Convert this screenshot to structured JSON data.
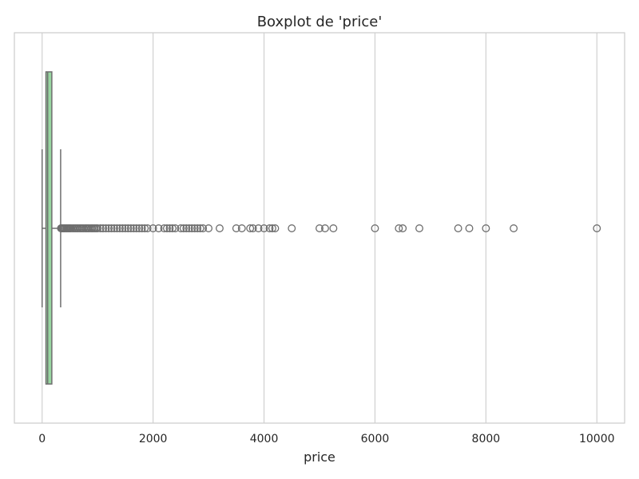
{
  "chart_data": {
    "type": "boxplot",
    "orientation": "horizontal",
    "title": "Boxplot de 'price'",
    "xlabel": "price",
    "ylabel": "",
    "xlim": [
      -500,
      10500
    ],
    "x_ticks": [
      0,
      2000,
      4000,
      6000,
      8000,
      10000
    ],
    "x_tick_labels": [
      "0",
      "2000",
      "4000",
      "6000",
      "8000",
      "10000"
    ],
    "grid": "vertical",
    "legend": "none",
    "box": {
      "whisker_low": 0,
      "q1": 69,
      "median": 100,
      "q3": 175,
      "whisker_high": 334
    },
    "outliers": [
      340,
      350,
      360,
      375,
      390,
      400,
      420,
      440,
      450,
      470,
      490,
      500,
      520,
      550,
      575,
      600,
      625,
      650,
      680,
      700,
      725,
      750,
      780,
      800,
      825,
      850,
      880,
      900,
      925,
      950,
      975,
      1000,
      1050,
      1100,
      1150,
      1200,
      1250,
      1300,
      1350,
      1400,
      1450,
      1500,
      1550,
      1600,
      1650,
      1700,
      1750,
      1800,
      1850,
      1900,
      2000,
      2100,
      2200,
      2250,
      2300,
      2350,
      2400,
      2500,
      2550,
      2600,
      2650,
      2700,
      2750,
      2800,
      2850,
      2900,
      3000,
      3200,
      3500,
      3600,
      3750,
      3800,
      3900,
      4000,
      4100,
      4150,
      4200,
      4500,
      5000,
      5100,
      5250,
      6000,
      6430,
      6500,
      6800,
      7500,
      7700,
      8000,
      8500,
      10000
    ],
    "colors": {
      "box_fill": "#98d6a1",
      "box_edge": "#6e6e6e",
      "whisker": "#6e6e6e",
      "outlier_edge": "#6e6e6e",
      "grid": "#d0d0d0",
      "frame": "#cccccc"
    }
  }
}
